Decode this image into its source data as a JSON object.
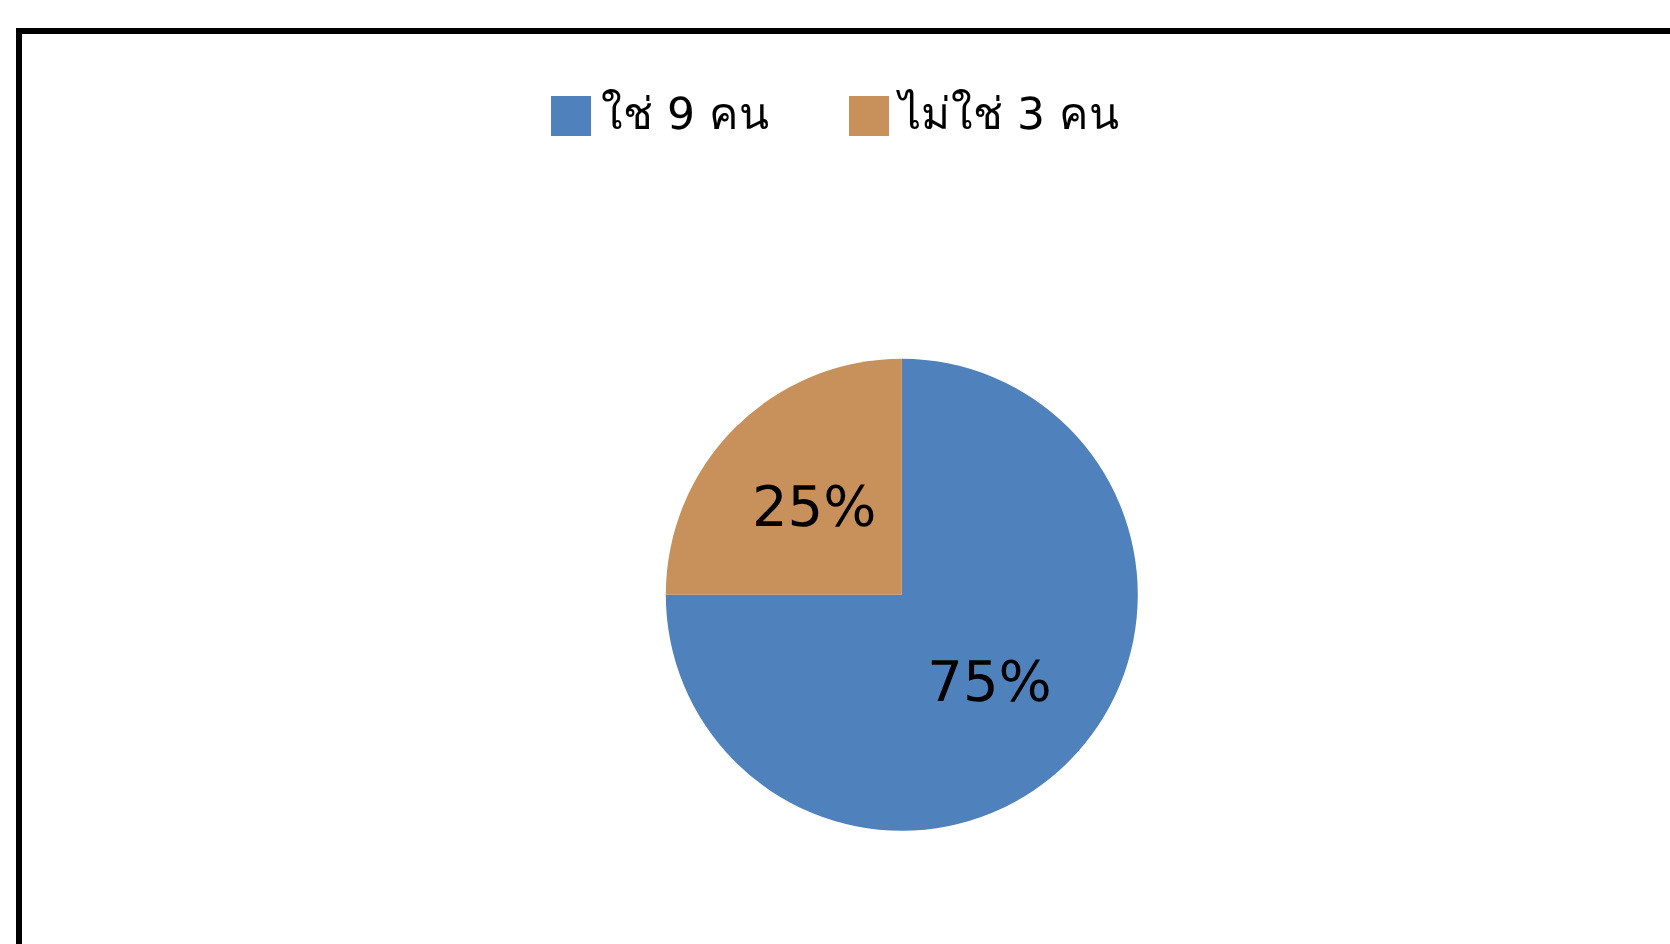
{
  "chart_data": {
    "type": "pie",
    "categories": [
      "ใช่ 9 คน",
      "ไม่ใช่ 3 คน"
    ],
    "values": [
      75,
      25
    ],
    "colors": [
      "#4f81bd",
      "#c8905a"
    ],
    "value_labels": [
      "75%",
      "25%"
    ],
    "legend": "top"
  }
}
